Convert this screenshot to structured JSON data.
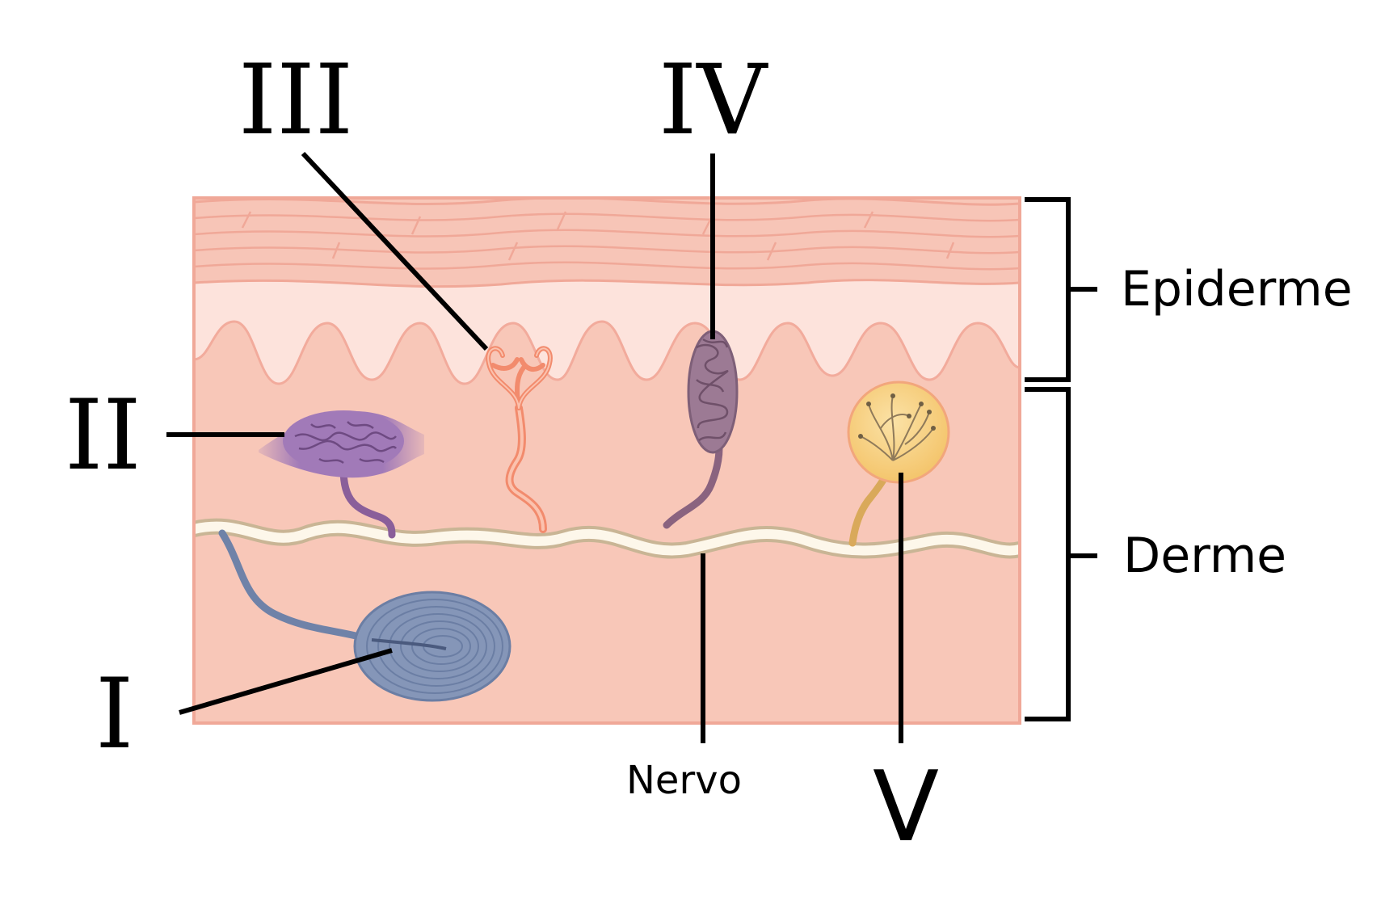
{
  "diagram": {
    "labels": {
      "I": "I",
      "II": "II",
      "III": "III",
      "IV": "IV",
      "V": "V"
    },
    "layers": {
      "epidermis": "Epiderme",
      "dermis": "Derme"
    },
    "nerve": "Nervo",
    "colors": {
      "stratum_corneum": "#f7c5b7",
      "epidermis_light": "#fde3dc",
      "dermis": "#f8c7b8",
      "skin_edge": "#f0a898",
      "nerve": "#fdf7ea",
      "pacinian": "#8596b8",
      "ruffini": "#a17ab8",
      "free_ending": "#f28b6d",
      "meissner": "#9c7a94",
      "krause": "#f6d07c"
    }
  }
}
